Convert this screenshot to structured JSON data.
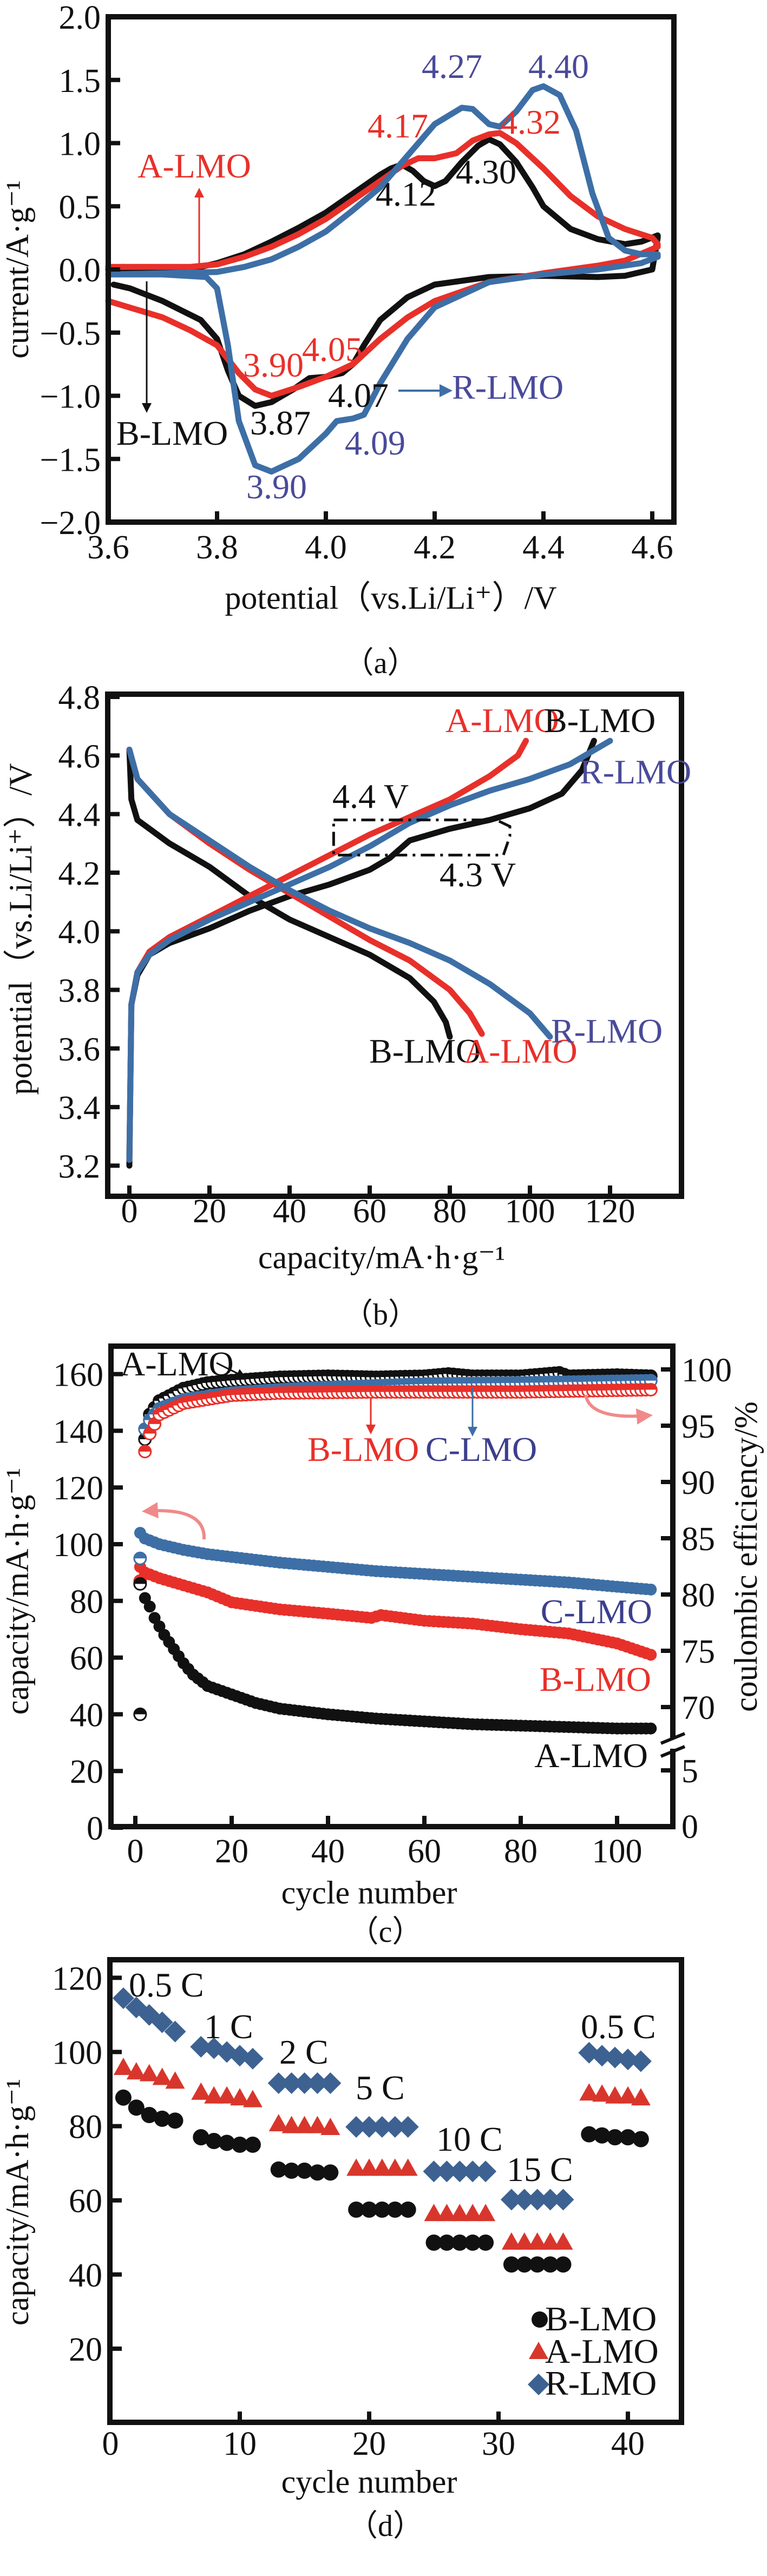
{
  "colors": {
    "black": "#111111",
    "red": "#e8302a",
    "blue": "#3d6fa6",
    "label_blue": "#4a4a9a",
    "pink_arrow": "#f08a8a"
  },
  "chart_data": [
    {
      "panel": "(a)",
      "type": "line",
      "xlabel": "potential（vs.Li/Li⁺）/V",
      "ylabel": "current/A·g⁻¹",
      "xlim": [
        3.6,
        4.65
      ],
      "ylim": [
        -2.0,
        2.0
      ],
      "xticks": [
        "3.6",
        "3.8",
        "4.0",
        "4.2",
        "4.4",
        "4.6"
      ],
      "yticks": [
        "2.0",
        "1.5",
        "1.0",
        "0.5",
        "0.0",
        "−0.5",
        "−1.0",
        "−1.5",
        "−2.0"
      ],
      "series": [
        {
          "name": "B-LMO",
          "color": "#111111",
          "x": [
            3.6,
            3.7,
            3.76,
            3.8,
            3.85,
            3.9,
            3.95,
            4.0,
            4.05,
            4.1,
            4.12,
            4.14,
            4.16,
            4.18,
            4.2,
            4.22,
            4.25,
            4.28,
            4.3,
            4.32,
            4.35,
            4.38,
            4.4,
            4.45,
            4.5,
            4.55,
            4.58,
            4.61,
            4.61,
            4.6,
            4.55,
            4.5,
            4.4,
            4.3,
            4.2,
            4.15,
            4.1,
            4.07,
            4.05,
            4.03,
            4.0,
            3.97,
            3.94,
            3.9,
            3.87,
            3.84,
            3.82,
            3.8,
            3.77,
            3.7,
            3.64,
            3.61
          ],
          "y": [
            0.0,
            0.0,
            0.01,
            0.05,
            0.12,
            0.22,
            0.33,
            0.45,
            0.6,
            0.75,
            0.8,
            0.83,
            0.78,
            0.7,
            0.66,
            0.7,
            0.85,
            0.98,
            1.03,
            0.99,
            0.85,
            0.65,
            0.5,
            0.32,
            0.24,
            0.2,
            0.22,
            0.27,
            0.25,
            0.0,
            -0.05,
            -0.06,
            -0.05,
            -0.06,
            -0.12,
            -0.22,
            -0.4,
            -0.6,
            -0.75,
            -0.82,
            -0.85,
            -0.86,
            -0.95,
            -1.05,
            -1.08,
            -1.0,
            -0.8,
            -0.55,
            -0.4,
            -0.25,
            -0.15,
            -0.12
          ]
        },
        {
          "name": "A-LMO",
          "color": "#e8302a",
          "x": [
            3.6,
            3.75,
            3.8,
            3.85,
            3.9,
            3.95,
            4.0,
            4.05,
            4.1,
            4.14,
            4.17,
            4.2,
            4.24,
            4.27,
            4.3,
            4.32,
            4.35,
            4.4,
            4.45,
            4.5,
            4.55,
            4.6,
            4.61,
            4.61,
            4.55,
            4.5,
            4.4,
            4.3,
            4.2,
            4.15,
            4.1,
            4.05,
            4.0,
            3.95,
            3.9,
            3.87,
            3.84,
            3.8,
            3.75,
            3.7,
            3.6
          ],
          "y": [
            0.02,
            0.02,
            0.04,
            0.1,
            0.18,
            0.28,
            0.4,
            0.55,
            0.7,
            0.82,
            0.88,
            0.88,
            0.92,
            1.02,
            1.07,
            1.08,
            1.0,
            0.8,
            0.58,
            0.42,
            0.32,
            0.25,
            0.2,
            0.18,
            0.07,
            0.03,
            -0.03,
            -0.1,
            -0.25,
            -0.38,
            -0.55,
            -0.75,
            -0.85,
            -0.93,
            -1.0,
            -0.95,
            -0.82,
            -0.6,
            -0.48,
            -0.38,
            -0.25
          ]
        },
        {
          "name": "R-LMO",
          "color": "#3d6fa6",
          "x": [
            3.6,
            3.8,
            3.85,
            3.9,
            3.95,
            4.0,
            4.05,
            4.1,
            4.15,
            4.2,
            4.25,
            4.27,
            4.3,
            4.32,
            4.35,
            4.38,
            4.4,
            4.43,
            4.46,
            4.49,
            4.52,
            4.55,
            4.58,
            4.61,
            4.61,
            4.58,
            4.5,
            4.4,
            4.3,
            4.2,
            4.15,
            4.1,
            4.07,
            4.05,
            4.02,
            4.0,
            3.95,
            3.9,
            3.87,
            3.84,
            3.82,
            3.8,
            3.78,
            3.7,
            3.6
          ],
          "y": [
            -0.04,
            -0.02,
            0.02,
            0.08,
            0.18,
            0.3,
            0.47,
            0.65,
            0.9,
            1.15,
            1.28,
            1.27,
            1.15,
            1.13,
            1.25,
            1.42,
            1.45,
            1.38,
            1.1,
            0.6,
            0.25,
            0.15,
            0.12,
            0.12,
            0.1,
            0.05,
            0.0,
            -0.04,
            -0.1,
            -0.3,
            -0.55,
            -0.9,
            -1.15,
            -1.18,
            -1.2,
            -1.3,
            -1.5,
            -1.6,
            -1.55,
            -1.2,
            -0.6,
            -0.15,
            -0.06,
            -0.04,
            -0.04
          ]
        }
      ],
      "annotations": {
        "peak_427": "4.27",
        "peak_440": "4.40",
        "peak_417": "4.17",
        "peak_432": "4.32",
        "peak_412": "4.12",
        "peak_430": "4.30",
        "valley_390_red": "3.90",
        "valley_405": "4.05",
        "valley_407": "4.07",
        "valley_387": "3.87",
        "valley_409": "4.09",
        "valley_390_blue": "3.90",
        "label_a": "A-LMO",
        "label_b": "B-LMO",
        "label_r": "R-LMO"
      },
      "caption": "（a）"
    },
    {
      "panel": "(b)",
      "type": "line",
      "xlabel": "capacity/mA·h·g⁻¹",
      "ylabel": "potential（vs.Li/Li⁺）/V",
      "xlim": [
        -4.6,
        137.9
      ],
      "ylim": [
        3.09,
        4.8
      ],
      "xticks": [
        "0",
        "20",
        "40",
        "60",
        "80",
        "100",
        "120"
      ],
      "yticks": [
        "4.8",
        "4.6",
        "4.4",
        "4.2",
        "4.0",
        "3.8",
        "3.6",
        "3.4",
        "3.2"
      ],
      "series": [
        {
          "name": "B-LMO",
          "color": "#111111",
          "branch": "charge",
          "x": [
            0,
            0.5,
            2,
            5,
            10,
            20,
            30,
            40,
            50,
            60,
            65,
            70,
            80,
            90,
            100,
            108,
            113,
            116
          ],
          "y": [
            3.2,
            3.75,
            3.85,
            3.92,
            3.96,
            4.01,
            4.07,
            4.12,
            4.16,
            4.21,
            4.25,
            4.31,
            4.35,
            4.38,
            4.42,
            4.47,
            4.55,
            4.65
          ]
        },
        {
          "name": "B-LMO",
          "color": "#111111",
          "branch": "discharge",
          "x": [
            0,
            0.5,
            2,
            10,
            20,
            30,
            40,
            50,
            60,
            70,
            76,
            79,
            80
          ],
          "y": [
            4.62,
            4.45,
            4.38,
            4.3,
            4.22,
            4.12,
            4.04,
            3.98,
            3.92,
            3.84,
            3.76,
            3.69,
            3.64
          ]
        },
        {
          "name": "A-LMO",
          "color": "#e8302a",
          "branch": "charge",
          "x": [
            0,
            0.5,
            2,
            5,
            10,
            20,
            30,
            40,
            50,
            60,
            70,
            80,
            90,
            97,
            99
          ],
          "y": [
            3.22,
            3.75,
            3.86,
            3.93,
            3.98,
            4.05,
            4.12,
            4.19,
            4.26,
            4.33,
            4.39,
            4.45,
            4.53,
            4.6,
            4.65
          ]
        },
        {
          "name": "A-LMO",
          "color": "#e8302a",
          "branch": "discharge",
          "x": [
            0,
            2,
            10,
            20,
            30,
            40,
            50,
            60,
            70,
            80,
            85,
            88
          ],
          "y": [
            4.62,
            4.52,
            4.4,
            4.3,
            4.21,
            4.13,
            4.05,
            3.97,
            3.9,
            3.8,
            3.72,
            3.65
          ]
        },
        {
          "name": "R-LMO",
          "color": "#3d6fa6",
          "branch": "charge",
          "x": [
            0,
            0.5,
            2,
            5,
            10,
            20,
            30,
            40,
            50,
            60,
            70,
            80,
            90,
            100,
            110,
            120
          ],
          "y": [
            3.22,
            3.75,
            3.86,
            3.92,
            3.97,
            4.04,
            4.1,
            4.16,
            4.22,
            4.29,
            4.37,
            4.43,
            4.48,
            4.52,
            4.57,
            4.65
          ]
        },
        {
          "name": "R-LMO",
          "color": "#3d6fa6",
          "branch": "discharge",
          "x": [
            0,
            2,
            10,
            20,
            30,
            40,
            50,
            60,
            70,
            80,
            90,
            100,
            105
          ],
          "y": [
            4.62,
            4.52,
            4.4,
            4.31,
            4.22,
            4.14,
            4.07,
            4.01,
            3.96,
            3.9,
            3.82,
            3.72,
            3.64
          ]
        }
      ],
      "annotations": {
        "top_a": "A-LMO",
        "top_b": "B-LMO",
        "top_r": "R-LMO",
        "bottom_b": "B-LMO",
        "bottom_a": "A-LMO",
        "bottom_r": "R-LMO",
        "v44": "4.4 V",
        "v43": "4.3 V"
      },
      "dashed_box": {
        "x": [
          51,
          95
        ],
        "y": [
          4.26,
          4.38
        ]
      },
      "caption": "（b）"
    },
    {
      "panel": "(c)",
      "type": "scatter",
      "xlabel": "cycle number",
      "ylabel": "capacity/mA·h·g⁻¹",
      "y2label": "coulombic efficiency/%",
      "xlim": [
        -5,
        111.9
      ],
      "ylim": [
        0,
        170
      ],
      "y2_axis_break": true,
      "xticks": [
        "0",
        "20",
        "40",
        "60",
        "80",
        "100"
      ],
      "yticks": [
        "160",
        "140",
        "120",
        "100",
        "80",
        "60",
        "40",
        "20",
        "0"
      ],
      "y2ticks": [
        "100",
        "95",
        "90",
        "85",
        "80",
        "75",
        "70",
        "5",
        "0"
      ],
      "capacity_series": [
        {
          "name": "C-LMO",
          "color": "#3d6fa6",
          "x": [
            1,
            2,
            5,
            10,
            15,
            20,
            30,
            40,
            50,
            60,
            70,
            80,
            90,
            100,
            107
          ],
          "y": [
            104,
            102,
            100,
            98,
            96.5,
            95.5,
            93.5,
            92,
            90.5,
            89.5,
            88.5,
            87.5,
            86.5,
            85,
            84
          ]
        },
        {
          "name": "B-LMO",
          "color": "#e8302a",
          "x": [
            1,
            2,
            5,
            10,
            15,
            20,
            30,
            40,
            49,
            51,
            60,
            70,
            80,
            90,
            100,
            107
          ],
          "y": [
            92,
            90,
            88,
            85.5,
            83,
            79.5,
            77,
            75.5,
            74,
            75,
            73,
            72,
            70,
            68.5,
            65,
            61
          ]
        },
        {
          "name": "A-LMO",
          "color": "#111111",
          "x": [
            2,
            3,
            4,
            5,
            6,
            8,
            10,
            12,
            15,
            20,
            25,
            30,
            40,
            50,
            60,
            70,
            80,
            90,
            100,
            107
          ],
          "y": [
            81,
            78,
            74,
            71,
            68,
            63,
            58,
            54,
            50,
            47,
            44,
            42,
            40,
            38.5,
            37.5,
            36.5,
            36,
            35.5,
            35,
            35
          ]
        }
      ],
      "first_cycle_markers": [
        {
          "color": "#3d6fa6",
          "x": 1,
          "y": 95
        },
        {
          "color": "#e8302a",
          "x": 1,
          "y": 87
        },
        {
          "color": "#111111",
          "x": 1,
          "y": 86
        },
        {
          "color": "#111111",
          "x": 1,
          "y": 40
        }
      ],
      "efficiency_series": [
        {
          "name": "A-LMO",
          "color": "#111111",
          "x": [
            2,
            3,
            5,
            10,
            15,
            20,
            30,
            40,
            50,
            60,
            65,
            70,
            80,
            88,
            90,
            100,
            107
          ],
          "y": [
            93.8,
            96,
            97.2,
            98.3,
            98.8,
            99,
            99.3,
            99.4,
            99.3,
            99.4,
            99.6,
            99.4,
            99.4,
            99.7,
            99.4,
            99.5,
            99.4
          ]
        },
        {
          "name": "C-LMO",
          "color": "#3d6fa6",
          "x": [
            2,
            3,
            5,
            10,
            20,
            30,
            40,
            60,
            80,
            107
          ],
          "y": [
            94.7,
            95.5,
            96.5,
            97.3,
            97.9,
            98.2,
            98.4,
            98.7,
            98.8,
            99
          ]
        },
        {
          "name": "B-LMO",
          "color": "#e8302a",
          "x": [
            2,
            3,
            5,
            10,
            20,
            30,
            50,
            80,
            107
          ],
          "y": [
            92.7,
            94.3,
            96,
            97,
            97.7,
            97.9,
            98,
            98,
            98.2
          ]
        }
      ],
      "annotations": {
        "top_a": "A-LMO",
        "top_b": "B-LMO",
        "top_c": "C-LMO",
        "right_c": "C-LMO",
        "right_b": "B-LMO",
        "right_a": "A-LMO"
      },
      "caption": "（c）"
    },
    {
      "panel": "(d)",
      "type": "scatter",
      "xlabel": "cycle number",
      "ylabel": "capacity/mA·h·g⁻¹",
      "xlim": [
        -0.1,
        44.2
      ],
      "ylim": [
        0,
        125
      ],
      "xticks": [
        "0",
        "10",
        "20",
        "30",
        "40"
      ],
      "yticks": [
        "120",
        "100",
        "80",
        "60",
        "40",
        "20"
      ],
      "legend": "bottom-right",
      "rates": [
        "0.5 C",
        "1 C",
        "2 C",
        "5 C",
        "10 C",
        "15 C",
        "0.5 C"
      ],
      "x": [
        1,
        2,
        3,
        4,
        5,
        7,
        8,
        9,
        10,
        11,
        13,
        14,
        15,
        16,
        17,
        19,
        20,
        21,
        22,
        23,
        25,
        26,
        27,
        28,
        29,
        31,
        32,
        33,
        34,
        35,
        37,
        38,
        39,
        40,
        41
      ],
      "series": [
        {
          "name": "B-LMO",
          "marker": "circle",
          "color": "#111111",
          "values": [
            87.7,
            85,
            83,
            82,
            81.5,
            77,
            76,
            75.5,
            75,
            75,
            68.3,
            68,
            68,
            67.5,
            67.5,
            57.5,
            57.5,
            57.5,
            57.5,
            57.5,
            48.6,
            48.6,
            48.6,
            48.6,
            48.6,
            42.7,
            42.7,
            42.7,
            42.7,
            42.7,
            77.8,
            77.5,
            77,
            77,
            76.5
          ]
        },
        {
          "name": "A-LMO",
          "marker": "triangle",
          "color": "#d8362c",
          "values": [
            95.7,
            94.5,
            94,
            93,
            92,
            89,
            88,
            88,
            87.5,
            87,
            80.5,
            80,
            80,
            80,
            79.5,
            68.5,
            68.5,
            68.5,
            68.5,
            68.5,
            56.3,
            56.3,
            56.3,
            56.3,
            56.3,
            48.6,
            48.6,
            48.6,
            48.6,
            48.6,
            88.8,
            88.5,
            88,
            88,
            87.5
          ]
        },
        {
          "name": "R-LMO",
          "marker": "diamond",
          "color": "#3d6291",
          "values": [
            114.5,
            112,
            110,
            108,
            105.5,
            101.4,
            101,
            100,
            99,
            98.2,
            91.6,
            91.6,
            91.6,
            91.6,
            91.6,
            79.8,
            79.8,
            79.8,
            79.8,
            79.8,
            67.8,
            67.8,
            67.8,
            67.8,
            67.8,
            60.2,
            60.2,
            60.2,
            60.2,
            60.2,
            99.8,
            99,
            98.5,
            98,
            97.5
          ]
        }
      ],
      "caption": "（d）"
    }
  ]
}
